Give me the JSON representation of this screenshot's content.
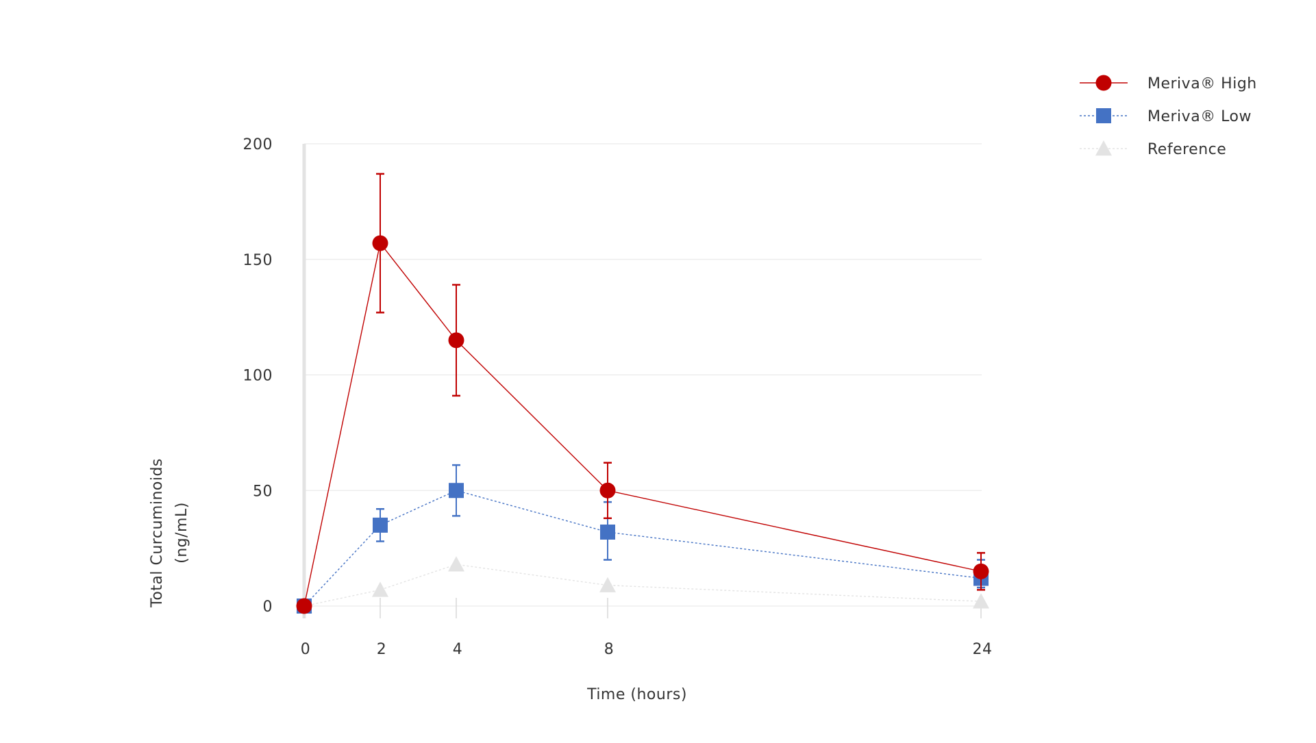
{
  "chart_data": {
    "type": "line",
    "title": "",
    "xlabel": "Time (hours)",
    "ylabel_lines": [
      "Total Curcuminoids",
      "(ng/mL)"
    ],
    "ylabel": "Total Curcuminoids (ng/mL)",
    "x": [
      0,
      2,
      4,
      8,
      24
    ],
    "x_tick_labels": [
      "0",
      "2",
      "4",
      "8",
      "24"
    ],
    "y_ticks": [
      0,
      50,
      100,
      150,
      200
    ],
    "y_tick_labels": [
      "0",
      "50",
      "100",
      "150",
      "200"
    ],
    "ylim": [
      0,
      200
    ],
    "grid": true,
    "legend_position": "top-right",
    "series": [
      {
        "name": "Meriva® High",
        "color": "#c00000",
        "marker": "circle",
        "line_style": "solid",
        "values": [
          0,
          157,
          115,
          50,
          15
        ],
        "err_high": [
          0,
          187,
          139,
          62,
          23
        ],
        "err_low": [
          0,
          127,
          91,
          38,
          7
        ]
      },
      {
        "name": "Meriva® Low",
        "color": "#4472c4",
        "marker": "square",
        "line_style": "dotted",
        "values": [
          0,
          35,
          50,
          32,
          12
        ],
        "err_high": [
          0,
          42,
          61,
          45,
          20
        ],
        "err_low": [
          0,
          28,
          39,
          20,
          8
        ]
      },
      {
        "name": "Reference",
        "color": "#e3e3e3",
        "marker": "triangle",
        "line_style": "dotted",
        "values": [
          0,
          7,
          18,
          9,
          2
        ],
        "err_high": [],
        "err_low": []
      }
    ]
  }
}
